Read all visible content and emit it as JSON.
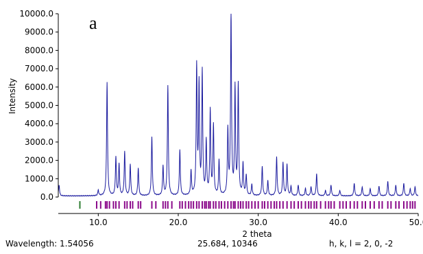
{
  "panel_label": "a",
  "status_bar": {
    "wavelength": "Wavelength: 1.54056",
    "cursor_readout": "25.684, 10346",
    "hkl": "h, k, l = 2, 0, -2"
  },
  "colors": {
    "pattern_line": "#1a1a9e",
    "reflection_ticks": "#8b0a8b",
    "axis": "#000000"
  },
  "chart_data": {
    "type": "line",
    "title": "",
    "xlabel": "2 theta",
    "ylabel": "Intensity",
    "xlim": [
      5.0,
      50.0
    ],
    "ylim": [
      0.0,
      10000.0
    ],
    "x_ticks": [
      10.0,
      20.0,
      30.0,
      40.0,
      50.0
    ],
    "x_tick_labels": [
      "10.0",
      "20.0",
      "30.0",
      "40.0",
      "50.0"
    ],
    "y_ticks": [
      0,
      1000,
      2000,
      3000,
      4000,
      5000,
      6000,
      7000,
      8000,
      9000,
      10000
    ],
    "y_tick_labels": [
      "0.0",
      "1000.0",
      "2000.0",
      "3000.0",
      "4000.0",
      "5000.0",
      "6000.0",
      "7000.0",
      "8000.0",
      "9000.0",
      "10000.0"
    ],
    "grid": false,
    "legend": "none",
    "series": [
      {
        "peaks": [
          [
            5.1,
            600
          ],
          [
            10.0,
            300
          ],
          [
            11.1,
            6200
          ],
          [
            12.2,
            2100
          ],
          [
            12.6,
            1700
          ],
          [
            13.3,
            2400
          ],
          [
            14.0,
            1700
          ],
          [
            15.0,
            1500
          ],
          [
            16.7,
            3200
          ],
          [
            18.1,
            1600
          ],
          [
            18.7,
            6000
          ],
          [
            20.2,
            2500
          ],
          [
            21.6,
            1300
          ],
          [
            22.3,
            7000
          ],
          [
            22.6,
            5900
          ],
          [
            23.0,
            6700
          ],
          [
            23.5,
            2900
          ],
          [
            24.0,
            4600
          ],
          [
            24.4,
            3800
          ],
          [
            25.1,
            1900
          ],
          [
            26.2,
            3500
          ],
          [
            26.6,
            10000
          ],
          [
            27.1,
            5800
          ],
          [
            27.5,
            6000
          ],
          [
            28.1,
            1700
          ],
          [
            28.5,
            1100
          ],
          [
            29.2,
            600
          ],
          [
            30.5,
            1600
          ],
          [
            31.2,
            800
          ],
          [
            32.3,
            2100
          ],
          [
            33.1,
            1800
          ],
          [
            33.6,
            1700
          ],
          [
            34.1,
            500
          ],
          [
            35.0,
            600
          ],
          [
            35.9,
            400
          ],
          [
            36.6,
            500
          ],
          [
            37.3,
            1200
          ],
          [
            38.4,
            300
          ],
          [
            39.1,
            600
          ],
          [
            40.2,
            300
          ],
          [
            42.0,
            700
          ],
          [
            43.0,
            500
          ],
          [
            44.0,
            400
          ],
          [
            45.1,
            550
          ],
          [
            46.2,
            800
          ],
          [
            47.2,
            600
          ],
          [
            48.2,
            700
          ],
          [
            49.0,
            400
          ],
          [
            49.6,
            500
          ]
        ]
      }
    ],
    "reflection_positions": [
      7.7,
      9.8,
      10.3,
      10.9,
      11.1,
      11.4,
      11.9,
      12.2,
      12.6,
      13.3,
      13.6,
      14.0,
      14.3,
      15.0,
      15.3,
      16.7,
      17.2,
      18.1,
      18.4,
      18.7,
      19.2,
      20.2,
      20.5,
      20.9,
      21.3,
      21.6,
      21.9,
      22.3,
      22.6,
      23.0,
      23.3,
      23.5,
      23.8,
      24.0,
      24.4,
      24.7,
      25.1,
      25.4,
      25.8,
      26.2,
      26.6,
      26.9,
      27.1,
      27.5,
      27.8,
      28.1,
      28.5,
      28.8,
      29.2,
      29.6,
      30.0,
      30.5,
      30.8,
      31.2,
      31.6,
      32.0,
      32.3,
      32.7,
      33.1,
      33.6,
      34.1,
      34.5,
      35.0,
      35.4,
      35.9,
      36.3,
      36.6,
      37.0,
      37.3,
      37.8,
      38.4,
      38.8,
      39.1,
      39.5,
      40.2,
      40.6,
      41.0,
      41.5,
      42.0,
      42.4,
      43.0,
      43.4,
      44.0,
      44.5,
      45.1,
      45.5,
      46.2,
      46.6,
      47.2,
      47.6,
      48.2,
      48.6,
      49.0,
      49.3,
      49.6
    ]
  }
}
